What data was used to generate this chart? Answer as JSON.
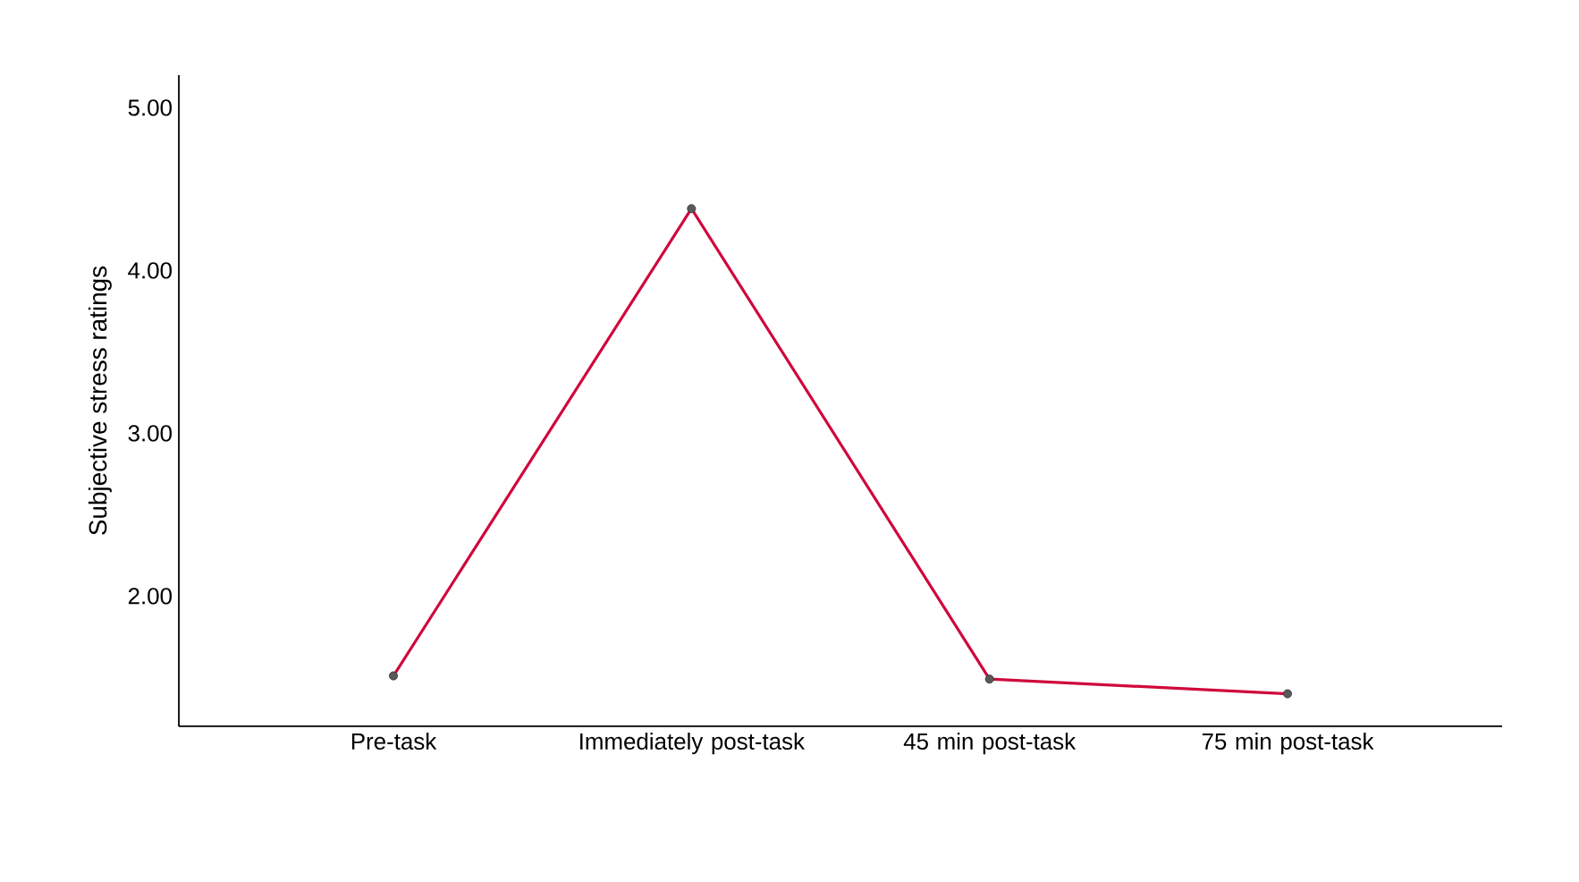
{
  "chart_data": {
    "type": "line",
    "ylabel": "Subjective stress ratings",
    "categories": [
      "Pre-task",
      "Immediately post-task",
      "45 min post-task",
      "75 min post-task"
    ],
    "series": [
      {
        "color": "#d0083c",
        "values": [
          1.51,
          4.38,
          1.49,
          1.4
        ]
      }
    ],
    "ylim": [
      1.2,
      5.2
    ],
    "yticks": [
      {
        "value": 2,
        "label": "2.00"
      },
      {
        "value": 3,
        "label": "3.00"
      },
      {
        "value": 4,
        "label": "4.00"
      },
      {
        "value": 5,
        "label": "5.00"
      }
    ],
    "marker": "circle",
    "line_style": "solid",
    "grid": false
  }
}
